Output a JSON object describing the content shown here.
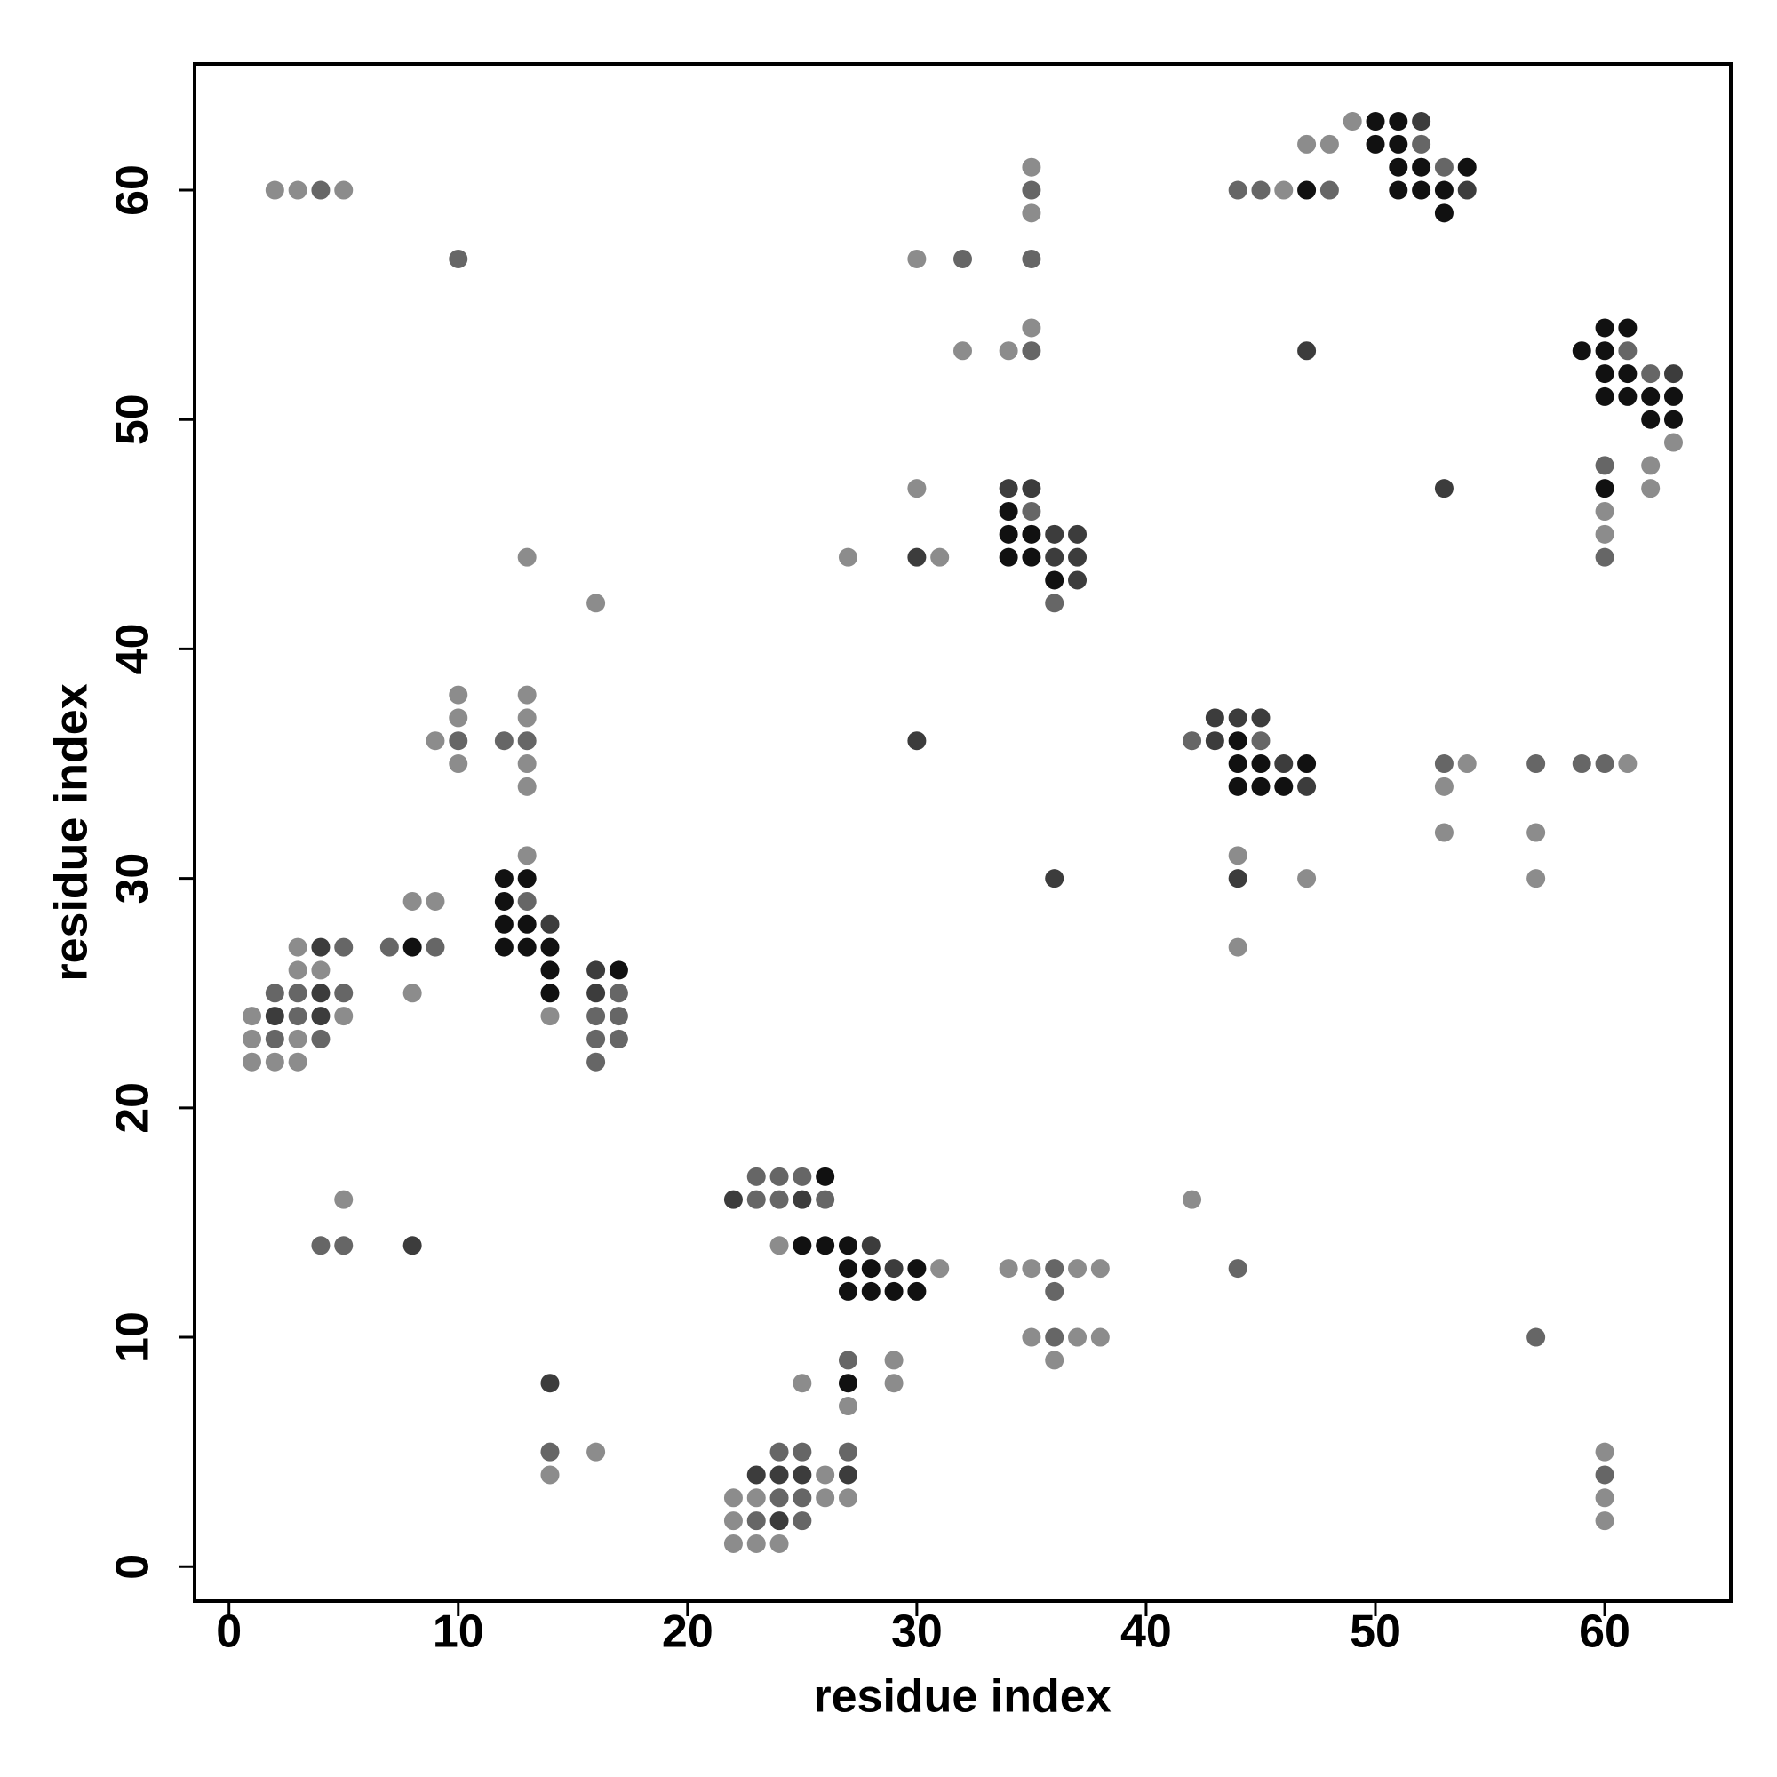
{
  "chart_data": {
    "type": "scatter",
    "x_label": "residue index",
    "y_label": "residue index",
    "xlim": [
      -1.5,
      65.5
    ],
    "ylim": [
      -1.5,
      65.5
    ],
    "xticks": [
      0,
      10,
      20,
      30,
      40,
      50,
      60
    ],
    "yticks": [
      0,
      10,
      20,
      30,
      40,
      50,
      60
    ],
    "x": [
      49,
      50,
      51,
      52,
      47,
      48,
      50,
      51,
      52,
      35,
      51,
      52,
      53,
      54,
      2,
      3,
      4,
      5,
      35,
      44,
      45,
      46,
      47,
      48,
      51,
      52,
      53,
      54,
      35,
      53,
      10,
      30,
      32,
      35,
      35,
      60,
      61,
      32,
      34,
      35,
      47,
      59,
      60,
      61,
      60,
      61,
      62,
      63,
      60,
      61,
      62,
      63,
      62,
      63,
      63,
      60,
      62,
      30,
      34,
      35,
      53,
      60,
      62,
      34,
      35,
      60,
      34,
      35,
      36,
      37,
      60,
      13,
      27,
      30,
      31,
      34,
      35,
      36,
      37,
      60,
      36,
      37,
      16,
      36,
      10,
      13,
      10,
      13,
      43,
      44,
      45,
      9,
      10,
      12,
      13,
      30,
      42,
      43,
      44,
      45,
      10,
      13,
      44,
      45,
      46,
      47,
      53,
      54,
      57,
      59,
      60,
      61,
      13,
      44,
      45,
      46,
      47,
      53,
      53,
      57,
      13,
      44,
      12,
      13,
      36,
      44,
      47,
      57,
      8,
      9,
      12,
      13,
      12,
      13,
      14,
      3,
      4,
      5,
      7,
      8,
      9,
      12,
      13,
      14,
      44,
      3,
      4,
      14,
      16,
      17,
      2,
      3,
      4,
      5,
      8,
      14,
      16,
      17,
      1,
      2,
      3,
      4,
      5,
      14,
      16,
      17,
      1,
      2,
      3,
      4,
      16,
      17,
      1,
      2,
      3,
      16,
      23,
      24,
      25,
      26,
      5,
      22,
      23,
      24,
      25,
      26,
      42,
      4,
      5,
      8,
      24,
      25,
      26,
      27,
      28,
      27,
      28,
      29,
      30,
      31,
      34,
      35,
      36,
      37,
      38,
      44,
      27,
      28,
      29,
      30,
      36,
      35,
      36,
      37,
      38,
      57,
      27,
      29,
      36,
      14,
      25,
      27,
      29,
      27,
      14,
      16,
      24,
      25,
      27,
      60,
      14,
      23,
      24,
      25,
      26,
      27,
      60,
      22,
      23,
      24,
      25,
      26,
      27,
      60,
      22,
      23,
      24,
      25,
      60,
      22,
      23,
      24
    ],
    "y": [
      63,
      63,
      63,
      63,
      62,
      62,
      62,
      62,
      62,
      61,
      61,
      61,
      61,
      61,
      60,
      60,
      60,
      60,
      60,
      60,
      60,
      60,
      60,
      60,
      60,
      60,
      60,
      60,
      59,
      59,
      57,
      57,
      57,
      57,
      54,
      54,
      54,
      53,
      53,
      53,
      53,
      53,
      53,
      53,
      52,
      52,
      52,
      52,
      51,
      51,
      51,
      51,
      50,
      50,
      49,
      48,
      48,
      47,
      47,
      47,
      47,
      47,
      47,
      46,
      46,
      46,
      45,
      45,
      45,
      45,
      45,
      44,
      44,
      44,
      44,
      44,
      44,
      44,
      44,
      44,
      43,
      43,
      42,
      42,
      38,
      38,
      37,
      37,
      37,
      37,
      37,
      36,
      36,
      36,
      36,
      36,
      36,
      36,
      36,
      36,
      35,
      35,
      35,
      35,
      35,
      35,
      35,
      35,
      35,
      35,
      35,
      35,
      34,
      34,
      34,
      34,
      34,
      34,
      32,
      32,
      31,
      31,
      30,
      30,
      30,
      30,
      30,
      30,
      29,
      29,
      29,
      29,
      28,
      28,
      28,
      27,
      27,
      27,
      27,
      27,
      27,
      27,
      27,
      27,
      27,
      26,
      26,
      26,
      26,
      26,
      25,
      25,
      25,
      25,
      25,
      25,
      25,
      25,
      24,
      24,
      24,
      24,
      24,
      24,
      24,
      24,
      23,
      23,
      23,
      23,
      23,
      23,
      22,
      22,
      22,
      22,
      17,
      17,
      17,
      17,
      16,
      16,
      16,
      16,
      16,
      16,
      16,
      14,
      14,
      14,
      14,
      14,
      14,
      14,
      14,
      13,
      13,
      13,
      13,
      13,
      13,
      13,
      13,
      13,
      13,
      13,
      12,
      12,
      12,
      12,
      12,
      10,
      10,
      10,
      10,
      10,
      9,
      9,
      9,
      8,
      8,
      8,
      8,
      7,
      5,
      5,
      5,
      5,
      5,
      5,
      4,
      4,
      4,
      4,
      4,
      4,
      4,
      3,
      3,
      3,
      3,
      3,
      3,
      3,
      2,
      2,
      2,
      2,
      2,
      1,
      1,
      1
    ],
    "colors": [
      "#8c8c8c",
      "#111111",
      "#111111",
      "#3c3c3c",
      "#8c8c8c",
      "#8c8c8c",
      "#111111",
      "#111111",
      "#666666",
      "#8c8c8c",
      "#111111",
      "#111111",
      "#666666",
      "#111111",
      "#8c8c8c",
      "#8c8c8c",
      "#666666",
      "#8c8c8c",
      "#666666",
      "#666666",
      "#666666",
      "#8c8c8c",
      "#111111",
      "#666666",
      "#111111",
      "#111111",
      "#111111",
      "#3c3c3c",
      "#8c8c8c",
      "#111111",
      "#666666",
      "#8c8c8c",
      "#666666",
      "#666666",
      "#8c8c8c",
      "#111111",
      "#111111",
      "#8c8c8c",
      "#8c8c8c",
      "#666666",
      "#3c3c3c",
      "#111111",
      "#111111",
      "#666666",
      "#111111",
      "#111111",
      "#666666",
      "#3c3c3c",
      "#111111",
      "#111111",
      "#111111",
      "#111111",
      "#111111",
      "#111111",
      "#8c8c8c",
      "#666666",
      "#8c8c8c",
      "#8c8c8c",
      "#3c3c3c",
      "#3c3c3c",
      "#3c3c3c",
      "#111111",
      "#8c8c8c",
      "#111111",
      "#666666",
      "#8c8c8c",
      "#111111",
      "#111111",
      "#3c3c3c",
      "#3c3c3c",
      "#8c8c8c",
      "#8c8c8c",
      "#8c8c8c",
      "#3c3c3c",
      "#8c8c8c",
      "#111111",
      "#111111",
      "#3c3c3c",
      "#3c3c3c",
      "#666666",
      "#111111",
      "#3c3c3c",
      "#8c8c8c",
      "#666666",
      "#8c8c8c",
      "#8c8c8c",
      "#8c8c8c",
      "#8c8c8c",
      "#3c3c3c",
      "#3c3c3c",
      "#3c3c3c",
      "#8c8c8c",
      "#666666",
      "#666666",
      "#666666",
      "#3c3c3c",
      "#666666",
      "#3c3c3c",
      "#111111",
      "#666666",
      "#8c8c8c",
      "#8c8c8c",
      "#111111",
      "#111111",
      "#3c3c3c",
      "#111111",
      "#666666",
      "#8c8c8c",
      "#666666",
      "#666666",
      "#666666",
      "#8c8c8c",
      "#8c8c8c",
      "#111111",
      "#111111",
      "#111111",
      "#3c3c3c",
      "#8c8c8c",
      "#8c8c8c",
      "#8c8c8c",
      "#8c8c8c",
      "#8c8c8c",
      "#111111",
      "#111111",
      "#3c3c3c",
      "#3c3c3c",
      "#8c8c8c",
      "#8c8c8c",
      "#8c8c8c",
      "#8c8c8c",
      "#111111",
      "#666666",
      "#111111",
      "#111111",
      "#3c3c3c",
      "#8c8c8c",
      "#3c3c3c",
      "#666666",
      "#666666",
      "#111111",
      "#666666",
      "#111111",
      "#111111",
      "#111111",
      "#8c8c8c",
      "#8c8c8c",
      "#8c8c8c",
      "#111111",
      "#3c3c3c",
      "#111111",
      "#666666",
      "#666666",
      "#3c3c3c",
      "#666666",
      "#8c8c8c",
      "#111111",
      "#3c3c3c",
      "#666666",
      "#8c8c8c",
      "#3c3c3c",
      "#666666",
      "#3c3c3c",
      "#8c8c8c",
      "#8c8c8c",
      "#666666",
      "#666666",
      "#8c8c8c",
      "#666666",
      "#8c8c8c",
      "#666666",
      "#666666",
      "#666666",
      "#8c8c8c",
      "#8c8c8c",
      "#8c8c8c",
      "#666666",
      "#666666",
      "#666666",
      "#666666",
      "#111111",
      "#8c8c8c",
      "#3c3c3c",
      "#666666",
      "#666666",
      "#3c3c3c",
      "#666666",
      "#8c8c8c",
      "#666666",
      "#666666",
      "#3c3c3c",
      "#8c8c8c",
      "#111111",
      "#111111",
      "#111111",
      "#3c3c3c",
      "#111111",
      "#111111",
      "#3c3c3c",
      "#111111",
      "#8c8c8c",
      "#8c8c8c",
      "#8c8c8c",
      "#666666",
      "#8c8c8c",
      "#8c8c8c",
      "#666666",
      "#111111",
      "#111111",
      "#111111",
      "#111111",
      "#666666",
      "#8c8c8c",
      "#666666",
      "#8c8c8c",
      "#8c8c8c",
      "#666666",
      "#666666",
      "#8c8c8c",
      "#8c8c8c",
      "#3c3c3c",
      "#8c8c8c",
      "#111111",
      "#8c8c8c",
      "#8c8c8c",
      "#666666",
      "#8c8c8c",
      "#666666",
      "#666666",
      "#666666",
      "#8c8c8c",
      "#8c8c8c",
      "#3c3c3c",
      "#3c3c3c",
      "#3c3c3c",
      "#8c8c8c",
      "#3c3c3c",
      "#666666",
      "#8c8c8c",
      "#8c8c8c",
      "#666666",
      "#666666",
      "#8c8c8c",
      "#8c8c8c",
      "#8c8c8c",
      "#8c8c8c",
      "#666666",
      "#3c3c3c",
      "#666666",
      "#8c8c8c",
      "#8c8c8c",
      "#8c8c8c",
      "#8c8c8c"
    ]
  }
}
